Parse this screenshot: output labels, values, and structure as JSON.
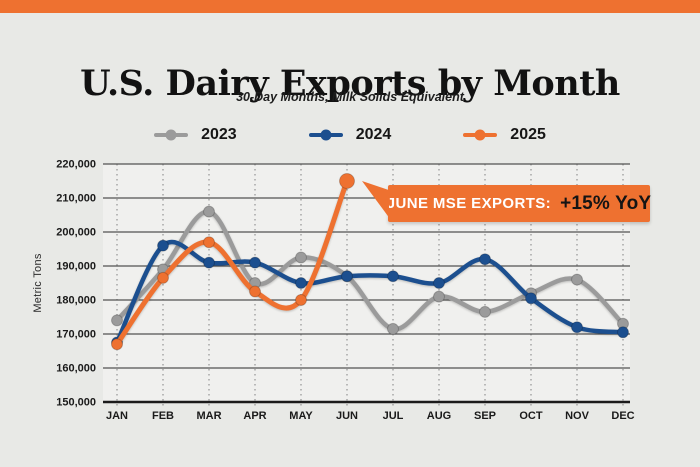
{
  "page": {
    "background": "#e8e9e6",
    "plot_background": "#f0f0ee",
    "top_bar_color": "#ee7130",
    "grid_color": "#525252",
    "axis_color": "#1b1b1b",
    "month_grid_color": "#9a9a9a",
    "text_color": "#161616"
  },
  "header": {
    "title": "U.S. Dairy Exports by Month",
    "subtitle": "30-Day Months, Milk Solids Equivalent"
  },
  "legend": {
    "items": [
      {
        "label": "2023",
        "color": "#9b9b9b"
      },
      {
        "label": "2024",
        "color": "#1c4f8f"
      },
      {
        "label": "2025",
        "color": "#ee7130"
      }
    ]
  },
  "callout": {
    "label": "JUNE MSE EXPORTS:",
    "value": "+15% YoY",
    "bg_color": "#ee7130",
    "label_color": "#ffffff",
    "value_color": "#141414"
  },
  "chart_data": {
    "type": "line",
    "title": "U.S. Dairy Exports by Month",
    "subtitle": "30-Day Months, Milk Solids Equivalent",
    "xlabel": "",
    "ylabel": "Metric Tons",
    "categories": [
      "JAN",
      "FEB",
      "MAR",
      "APR",
      "MAY",
      "JUN",
      "JUL",
      "AUG",
      "SEP",
      "OCT",
      "NOV",
      "DEC"
    ],
    "ylim": [
      150000,
      220000
    ],
    "ytick_step": 10000,
    "grid": true,
    "legend_position": "top",
    "series": [
      {
        "name": "2023",
        "color": "#9b9b9b",
        "values": [
          174000,
          189000,
          206000,
          185000,
          192500,
          187000,
          171500,
          181000,
          176500,
          182000,
          186000,
          173000
        ]
      },
      {
        "name": "2024",
        "color": "#1c4f8f",
        "values": [
          167500,
          196000,
          191000,
          191000,
          185000,
          187000,
          187000,
          185000,
          192000,
          180500,
          172000,
          170500
        ]
      },
      {
        "name": "2025",
        "color": "#ee7130",
        "values": [
          167000,
          186500,
          197000,
          182500,
          180000,
          215000,
          null,
          null,
          null,
          null,
          null,
          null
        ]
      }
    ],
    "annotation": {
      "text": "JUNE MSE EXPORTS: +15% YoY",
      "series": "2025",
      "month": "JUN",
      "value": 215000,
      "yoy_change_pct": 15
    }
  }
}
